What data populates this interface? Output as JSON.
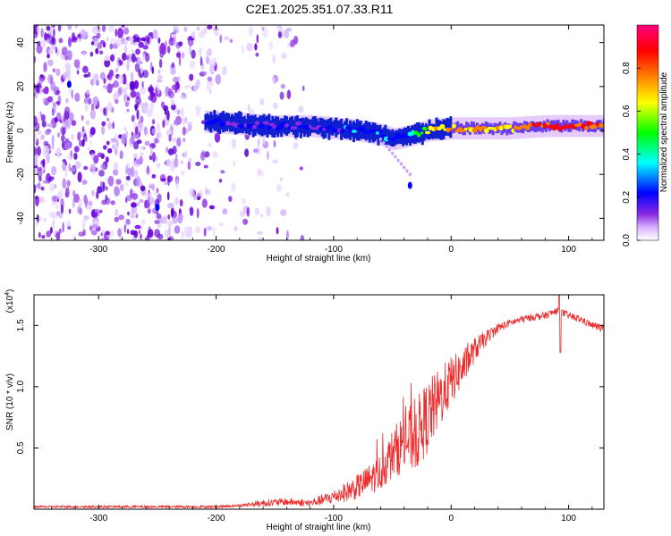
{
  "title": "C2E1.2025.351.07.33.R11",
  "chart_data": [
    {
      "type": "heatmap",
      "xlabel": "Height of straight line (km)",
      "ylabel": "Frequency (Hz)",
      "xlim": [
        -355,
        130
      ],
      "ylim": [
        -50,
        48
      ],
      "xticks": [
        -300,
        -200,
        -100,
        0,
        100
      ],
      "xtick_labels": [
        "-300",
        "-200",
        "-100",
        "0",
        "100"
      ],
      "yticks": [
        -40,
        -20,
        0,
        20,
        40
      ],
      "ytick_labels": [
        "-40",
        "-20",
        "0",
        "20",
        "40"
      ],
      "colorbar": {
        "label": "Normalized spectral amplitude",
        "range": [
          0,
          1
        ],
        "ticks": [
          0.0,
          0.2,
          0.4,
          0.6,
          0.8
        ],
        "tick_labels": [
          "0.0",
          "0.2",
          "0.4",
          "0.6",
          "0.8"
        ],
        "colors": [
          "#ffffff",
          "#c080ff",
          "#8a2be2",
          "#0000ff",
          "#00ffff",
          "#00ff00",
          "#ffff00",
          "#ff8000",
          "#ff0000",
          "#ff0080"
        ]
      },
      "ridge": {
        "heights": [
          -210,
          -180,
          -150,
          -120,
          -100,
          -80,
          -60,
          -50,
          -40,
          -20,
          0,
          20,
          50,
          80,
          100,
          130
        ],
        "frequency": [
          4,
          3,
          2,
          2,
          1,
          0,
          -2,
          -4,
          -3,
          0,
          1,
          1,
          1,
          2,
          2,
          2
        ],
        "amplitude": [
          0.35,
          0.35,
          0.35,
          0.3,
          0.35,
          0.45,
          0.45,
          0.45,
          0.4,
          0.7,
          0.85,
          0.8,
          0.75,
          0.9,
          0.95,
          0.85
        ]
      }
    },
    {
      "type": "line",
      "xlabel": "Height of straight line (km)",
      "ylabel": "SNR (10 * v/v)",
      "multiplier_label": "(x10",
      "multiplier_exponent": "4",
      "multiplier_close": ")",
      "xlim": [
        -355,
        130
      ],
      "ylim": [
        0,
        1.75
      ],
      "xticks": [
        -300,
        -200,
        -100,
        0,
        100
      ],
      "xtick_labels": [
        "-300",
        "-200",
        "-100",
        "0",
        "100"
      ],
      "yticks": [
        0.5,
        1.0,
        1.5
      ],
      "ytick_labels": [
        "0.5",
        "1.0",
        "1.5"
      ],
      "series": [
        {
          "name": "SNR",
          "color": "#ee2a2a",
          "x": [
            -355,
            -300,
            -250,
            -200,
            -180,
            -160,
            -140,
            -120,
            -100,
            -80,
            -60,
            -50,
            -40,
            -30,
            -20,
            -10,
            0,
            10,
            20,
            30,
            40,
            50,
            60,
            70,
            80,
            90,
            100,
            110,
            120,
            130
          ],
          "y": [
            0.02,
            0.02,
            0.02,
            0.02,
            0.03,
            0.05,
            0.06,
            0.05,
            0.1,
            0.18,
            0.3,
            0.45,
            0.55,
            0.6,
            0.75,
            0.9,
            1.05,
            1.15,
            1.3,
            1.4,
            1.48,
            1.52,
            1.55,
            1.57,
            1.58,
            1.62,
            1.58,
            1.55,
            1.5,
            1.48
          ],
          "noise": [
            0.01,
            0.01,
            0.01,
            0.01,
            0.01,
            0.03,
            0.03,
            0.03,
            0.06,
            0.1,
            0.15,
            0.2,
            0.25,
            0.3,
            0.3,
            0.25,
            0.2,
            0.15,
            0.1,
            0.06,
            0.04,
            0.03,
            0.03,
            0.03,
            0.03,
            0.03,
            0.03,
            0.03,
            0.03,
            0.03
          ]
        }
      ]
    }
  ]
}
